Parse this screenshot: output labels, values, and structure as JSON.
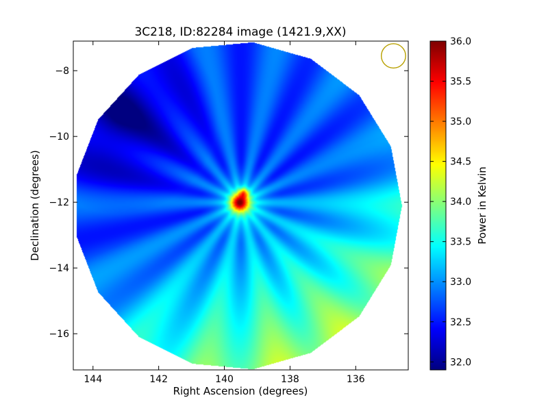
{
  "chart_data": {
    "type": "heatmap",
    "title": "3C218, ID:82284 image (1421.9,XX)",
    "xlabel": "Right Ascension (degrees)",
    "ylabel": "Declination (degrees)",
    "xlim": [
      144.6,
      134.4
    ],
    "ylim": [
      -17.1,
      -7.1
    ],
    "x_ticks": [
      144,
      142,
      140,
      138,
      136
    ],
    "y_ticks": [
      -8,
      -10,
      -12,
      -14,
      -16
    ],
    "grid": false,
    "colormap": "jet",
    "colorbar": {
      "label": "Power in Kelvin",
      "range": [
        31.9,
        36.0
      ],
      "ticks": [
        32.0,
        32.5,
        33.0,
        33.5,
        34.0,
        34.5,
        35.0,
        35.5,
        36.0
      ],
      "tick_labels": [
        "32.0",
        "32.5",
        "33.0",
        "33.5",
        "34.0",
        "34.5",
        "35.0",
        "35.5",
        "36.0"
      ]
    },
    "field": {
      "center_ra": 139.6,
      "center_dec": -12.1,
      "radius_deg": 5.0,
      "outside_value": null
    },
    "source": {
      "ra": 139.5,
      "dec": -12.0,
      "peak_kelvin": 35.9
    },
    "features": {
      "background_kelvin": 32.7,
      "southern_excess_kelvin": 33.9,
      "northeast_deficit_kelvin": 31.9
    },
    "beam": {
      "ra": 134.85,
      "dec": -7.55,
      "radius_deg": 0.37,
      "color": "#b8a000"
    }
  }
}
